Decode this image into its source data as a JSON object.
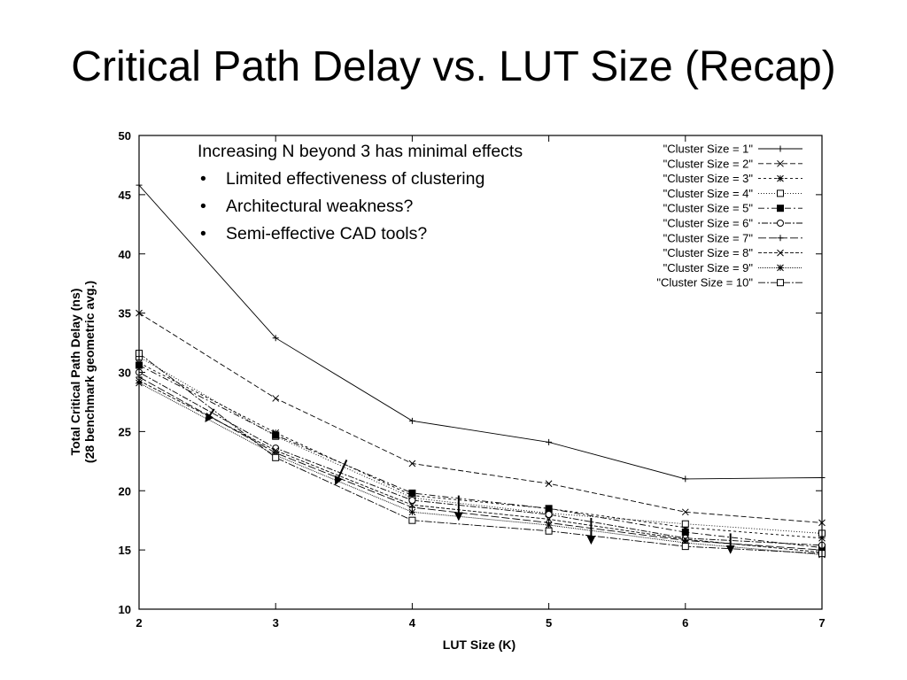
{
  "slide": {
    "title": "Critical Path Delay vs. LUT Size (Recap)"
  },
  "annotation": {
    "heading": "Increasing N beyond 3 has minimal effects",
    "bullet_symbol": "•",
    "bullets": [
      "Limited effectiveness of clustering",
      "Architectural weakness?",
      "Semi-effective CAD tools?"
    ]
  },
  "chart_data": {
    "type": "line",
    "xlabel": "LUT Size (K)",
    "ylabel_lines": [
      "Total Critical Path Delay (ns)",
      "(28 benchmark geometric avg.)"
    ],
    "x": [
      2,
      3,
      4,
      5,
      6,
      7
    ],
    "xlim": [
      2,
      7
    ],
    "ylim": [
      10,
      50
    ],
    "xticks": [
      2,
      3,
      4,
      5,
      6,
      7
    ],
    "yticks": [
      10,
      15,
      20,
      25,
      30,
      35,
      40,
      45,
      50
    ],
    "grid": false,
    "legend_position": "top-right",
    "series": [
      {
        "name": "\"Cluster Size = 1\"",
        "marker": "plus",
        "dash": "",
        "values": [
          45.8,
          32.9,
          25.9,
          24.1,
          21.0,
          21.1
        ]
      },
      {
        "name": "\"Cluster Size = 2\"",
        "marker": "x",
        "dash": "6,3",
        "values": [
          35.0,
          27.8,
          22.3,
          20.6,
          18.2,
          17.3
        ]
      },
      {
        "name": "\"Cluster Size = 3\"",
        "marker": "star",
        "dash": "3,3",
        "values": [
          30.8,
          24.9,
          19.6,
          18.5,
          16.9,
          16.0
        ]
      },
      {
        "name": "\"Cluster Size = 4\"",
        "marker": "square-open",
        "dash": "1,2",
        "values": [
          31.3,
          24.6,
          19.4,
          18.1,
          17.2,
          16.4
        ]
      },
      {
        "name": "\"Cluster Size = 5\"",
        "marker": "square-filled",
        "dash": "7,3,2,3",
        "values": [
          30.6,
          24.7,
          19.8,
          18.5,
          16.5,
          15.2
        ]
      },
      {
        "name": "\"Cluster Size = 6\"",
        "marker": "circle-open",
        "dash": "2,2,7,2",
        "values": [
          30.0,
          23.6,
          19.2,
          18.0,
          16.0,
          15.4
        ]
      },
      {
        "name": "\"Cluster Size = 7\"",
        "marker": "plus",
        "dash": "9,3",
        "values": [
          29.6,
          23.2,
          18.6,
          17.3,
          15.8,
          15.0
        ]
      },
      {
        "name": "\"Cluster Size = 8\"",
        "marker": "x",
        "dash": "4,2",
        "values": [
          29.3,
          23.4,
          18.8,
          17.6,
          15.9,
          14.8
        ]
      },
      {
        "name": "\"Cluster Size = 9\"",
        "marker": "star",
        "dash": "1,1",
        "values": [
          29.1,
          23.0,
          18.2,
          17.1,
          15.6,
          14.6
        ]
      },
      {
        "name": "\"Cluster Size = 10\"",
        "marker": "square-open",
        "dash": "8,2,2,2",
        "values": [
          31.6,
          22.8,
          17.5,
          16.6,
          15.3,
          14.7
        ]
      }
    ],
    "arrows": [
      {
        "x1": 2.55,
        "y1": 26.9,
        "x2": 2.49,
        "y2": 25.9
      },
      {
        "x1": 3.52,
        "y1": 22.6,
        "x2": 3.44,
        "y2": 20.6
      },
      {
        "x1": 4.34,
        "y1": 19.6,
        "x2": 4.34,
        "y2": 17.6
      },
      {
        "x1": 5.31,
        "y1": 17.7,
        "x2": 5.31,
        "y2": 15.6
      },
      {
        "x1": 6.33,
        "y1": 16.4,
        "x2": 6.33,
        "y2": 14.8
      }
    ]
  }
}
